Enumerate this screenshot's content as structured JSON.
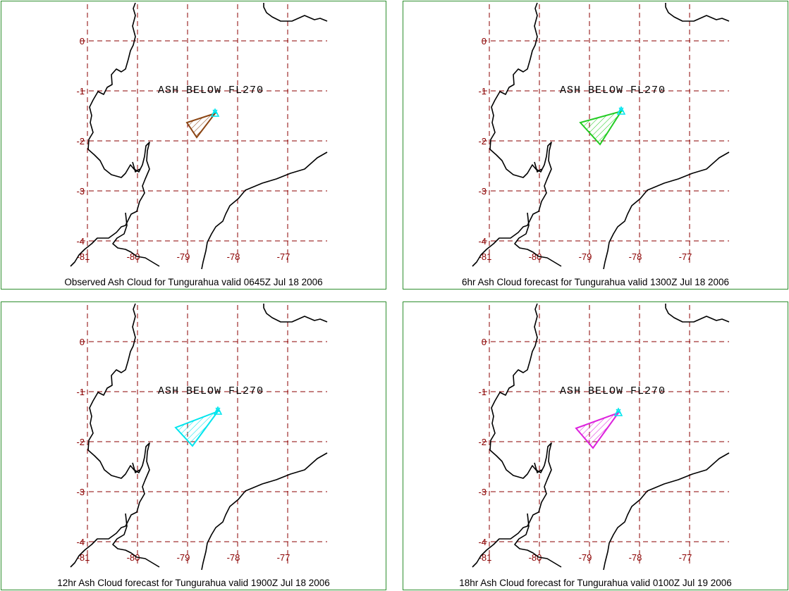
{
  "map": {
    "annotation": "ASH BELOW FL270",
    "lat_ticks": [
      "0",
      "-1",
      "-2",
      "-3",
      "-4"
    ],
    "lon_ticks": [
      "-81",
      "-80",
      "-79",
      "-78",
      "-77"
    ],
    "grid_color": "#8b0000",
    "coast_color": "#000000",
    "vent_color": "#00e5ee"
  },
  "panels": [
    {
      "caption": "Observed Ash Cloud for Tungurahua valid 0645Z Jul 18 2006",
      "cloud_color": "#8b4513"
    },
    {
      "caption": "6hr Ash Cloud forecast for Tungurahua valid 1300Z Jul 18 2006",
      "cloud_color": "#22cc22"
    },
    {
      "caption": "12hr Ash Cloud forecast for Tungurahua valid 1900Z Jul 18 2006",
      "cloud_color": "#00e5ee"
    },
    {
      "caption": "18hr Ash Cloud forecast for Tungurahua valid 0100Z Jul 19 2006",
      "cloud_color": "#dd22dd"
    }
  ]
}
